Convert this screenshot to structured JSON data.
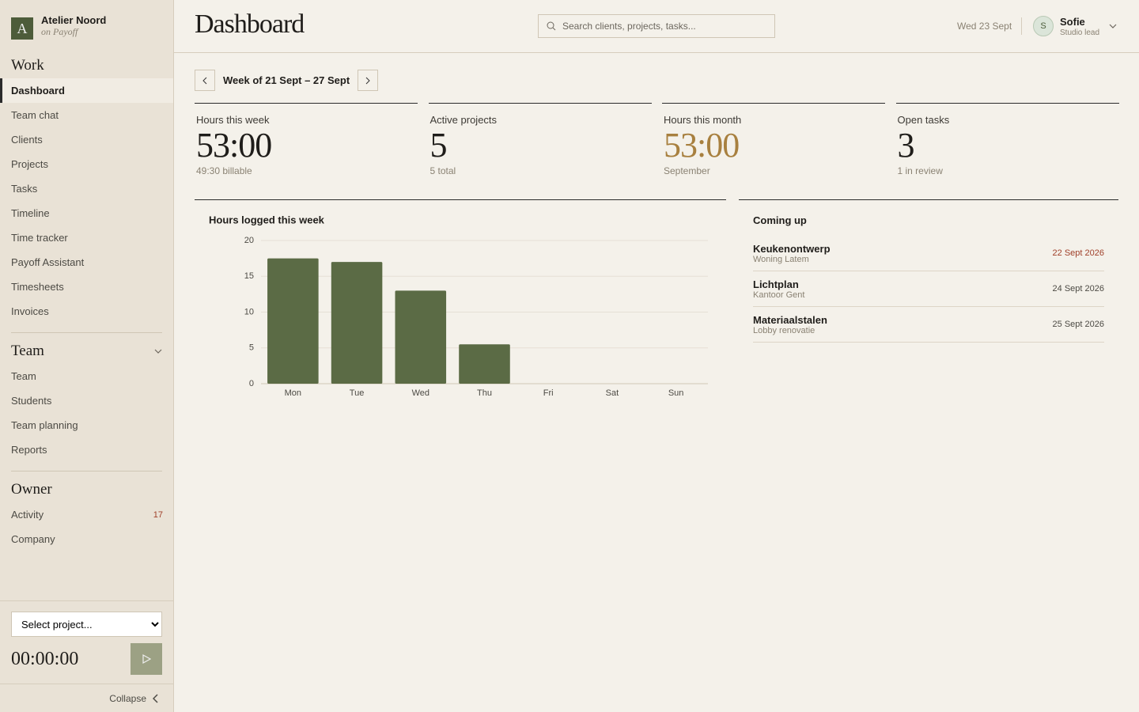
{
  "sidebar": {
    "brand": {
      "logo": "A",
      "name": "Atelier Noord",
      "sub": "on Payoff"
    },
    "sections": [
      {
        "title": "Work",
        "items": [
          {
            "label": "Dashboard",
            "active": true
          },
          {
            "label": "Team chat"
          },
          {
            "label": "Clients"
          },
          {
            "label": "Projects"
          },
          {
            "label": "Tasks"
          },
          {
            "label": "Timeline"
          },
          {
            "label": "Time tracker"
          },
          {
            "label": "Payoff Assistant"
          },
          {
            "label": "Timesheets"
          },
          {
            "label": "Invoices"
          }
        ]
      },
      {
        "title": "Team",
        "collapsible": true,
        "items": [
          {
            "label": "Team"
          },
          {
            "label": "Students"
          },
          {
            "label": "Team planning"
          },
          {
            "label": "Reports"
          }
        ]
      },
      {
        "title": "Owner",
        "items": [
          {
            "label": "Activity",
            "badge": 17
          },
          {
            "label": "Company"
          }
        ]
      }
    ],
    "timer": {
      "select": "Select project...",
      "time": "00:00:00"
    },
    "collapse": "Collapse"
  },
  "header": {
    "title": "Dashboard",
    "search_placeholder": "Search clients, projects, tasks...",
    "date": "Wed 23 Sept",
    "user": {
      "initial": "S",
      "name": "Sofie",
      "role": "Studio lead"
    }
  },
  "week": {
    "label": "Week of 21 Sept – 27 Sept"
  },
  "stats": [
    {
      "label": "Hours this week",
      "value": "53:00",
      "note": "49:30 billable"
    },
    {
      "label": "Active projects",
      "value": "5",
      "note": "5 total"
    },
    {
      "label": "Hours this month",
      "value": "53:00",
      "note": "September",
      "highlight": true
    },
    {
      "label": "Open tasks",
      "value": "3",
      "note": "1 in review"
    }
  ],
  "chart_data": {
    "type": "bar",
    "title": "Hours logged this week",
    "categories": [
      "Mon",
      "Tue",
      "Wed",
      "Thu",
      "Fri",
      "Sat",
      "Sun"
    ],
    "values": [
      17.5,
      17,
      13,
      5.5,
      0,
      0,
      0
    ],
    "color": "#5b6b45",
    "ylim": [
      0,
      20
    ],
    "yticks": [
      0,
      5,
      10,
      15,
      20
    ],
    "grid": true
  },
  "coming_up": {
    "title": "Coming up",
    "items": [
      {
        "name": "Keukenontwerp",
        "client": "Woning Latem",
        "date": "22 Sept 2026",
        "overdue": true
      },
      {
        "name": "Lichtplan",
        "client": "Kantoor Gent",
        "date": "24 Sept 2026"
      },
      {
        "name": "Materiaalstalen",
        "client": "Lobby renovatie",
        "date": "25 Sept 2026"
      }
    ]
  }
}
